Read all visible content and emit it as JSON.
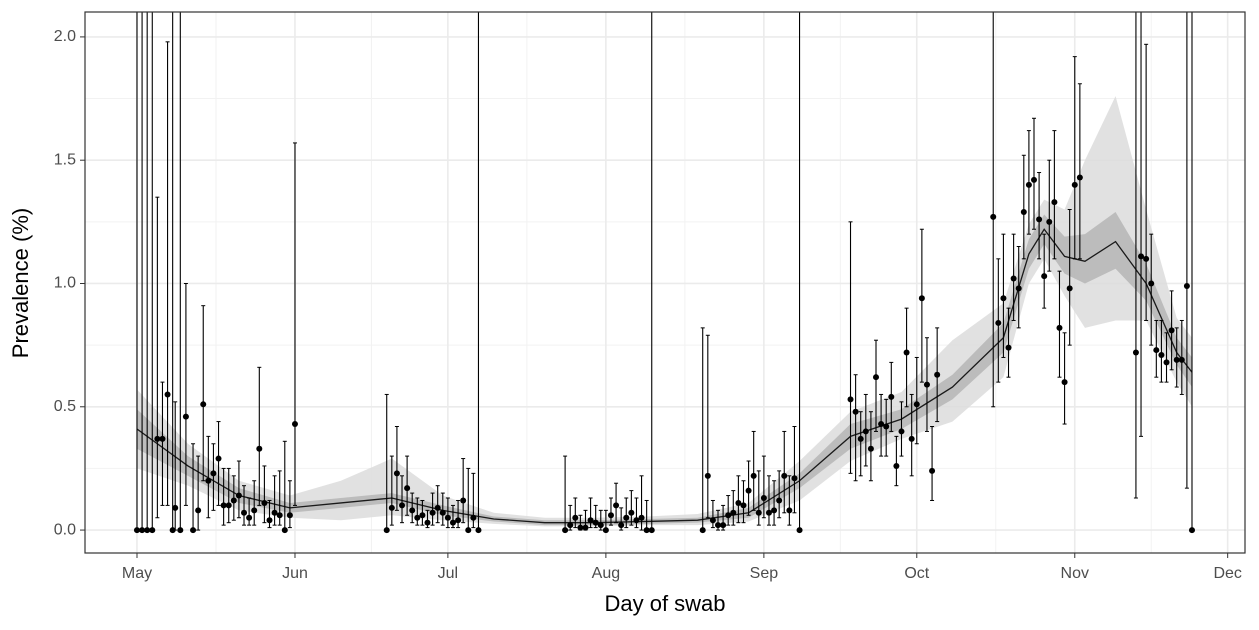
{
  "chart_data": {
    "type": "scatter",
    "x_label": "Day of swab",
    "y_label": "Prevalence (%)",
    "xlim": [
      -10.2,
      217.4
    ],
    "ylim": [
      -0.093,
      2.101
    ],
    "xticks": [
      {
        "value": 0,
        "label": "May"
      },
      {
        "value": 31,
        "label": "Jun"
      },
      {
        "value": 61,
        "label": "Jul"
      },
      {
        "value": 92,
        "label": "Aug"
      },
      {
        "value": 123,
        "label": "Sep"
      },
      {
        "value": 153,
        "label": "Oct"
      },
      {
        "value": 184,
        "label": "Nov"
      },
      {
        "value": 214,
        "label": "Dec"
      }
    ],
    "yticks": [
      {
        "value": 0,
        "label": "0.0"
      },
      0.5,
      {
        "value": 1,
        "label": "1.0"
      },
      1.5,
      {
        "value": 2,
        "label": "2.0"
      }
    ],
    "grid": true,
    "color": "#000000",
    "x": [
      0,
      1,
      2,
      3,
      4,
      5,
      6,
      7,
      7.5,
      8.5,
      9.6,
      11,
      12,
      13,
      14,
      15,
      16,
      17,
      18,
      19,
      20,
      21,
      22,
      23,
      24,
      25,
      26,
      27,
      28,
      29,
      30,
      31,
      49,
      50,
      51,
      52,
      53,
      54,
      55,
      56,
      57,
      58,
      59,
      60,
      61,
      62,
      63,
      64,
      65,
      66,
      67,
      84,
      85,
      86,
      87,
      88,
      89,
      90,
      91,
      92,
      93,
      94,
      95,
      96,
      97,
      98,
      99,
      100,
      101,
      111,
      112,
      113,
      114,
      115,
      116,
      117,
      118,
      119,
      120,
      121,
      122,
      123,
      124,
      125,
      126,
      127,
      128,
      129,
      130,
      140,
      141,
      142,
      143,
      144,
      145,
      146,
      147,
      148,
      149,
      150,
      151,
      152,
      153,
      154,
      155,
      156,
      157,
      168,
      169,
      170,
      171,
      172,
      173,
      174,
      175,
      176,
      177,
      178,
      179,
      180,
      181,
      182,
      183,
      184,
      185,
      196,
      197,
      198,
      199,
      200,
      201,
      202,
      203,
      204,
      205,
      206,
      207
    ],
    "values": [
      0,
      0,
      0,
      0,
      0.37,
      0.37,
      0.55,
      0,
      0.09,
      0,
      0.46,
      0,
      0.08,
      0.51,
      0.2,
      0.23,
      0.29,
      0.1,
      0.1,
      0.12,
      0.14,
      0.07,
      0.05,
      0.08,
      0.33,
      0.11,
      0.04,
      0.07,
      0.06,
      0,
      0.06,
      0.43,
      0,
      0.09,
      0.23,
      0.1,
      0.17,
      0.08,
      0.05,
      0.06,
      0.03,
      0.07,
      0.09,
      0.07,
      0.05,
      0.03,
      0.04,
      0.12,
      0,
      0.05,
      0,
      0,
      0.02,
      0.05,
      0.01,
      0.01,
      0.04,
      0.03,
      0.02,
      0,
      0.06,
      0.1,
      0.02,
      0.05,
      0.07,
      0.04,
      0.05,
      0,
      0,
      0,
      0.22,
      0.04,
      0.02,
      0.02,
      0.06,
      0.07,
      0.11,
      0.1,
      0.16,
      0.22,
      0.07,
      0.13,
      0.07,
      0.08,
      0.12,
      0.22,
      0.08,
      0.21,
      0,
      0.53,
      0.48,
      0.37,
      0.4,
      0.33,
      0.62,
      0.43,
      0.42,
      0.54,
      0.26,
      0.4,
      0.72,
      0.37,
      0.51,
      0.94,
      0.59,
      0.24,
      0.63,
      1.27,
      0.84,
      0.94,
      0.74,
      1.02,
      0.98,
      1.29,
      1.4,
      1.42,
      1.26,
      1.03,
      1.25,
      1.33,
      0.82,
      0.6,
      0.98,
      1.4,
      1.43,
      0.72,
      1.11,
      1.1,
      1.0,
      0.73,
      0.71,
      0.68,
      0.81,
      0.69,
      0.69,
      0.99,
      0
    ],
    "lower": [
      0,
      0,
      0,
      0,
      0.05,
      0.1,
      0.1,
      0,
      0,
      0,
      0.1,
      0,
      0,
      0.2,
      0.05,
      0.08,
      0.1,
      0.02,
      0.03,
      0.04,
      0.05,
      0.02,
      0.02,
      0.02,
      0.1,
      0.03,
      0.01,
      0.02,
      0.02,
      0,
      0.01,
      0.1,
      0,
      0.02,
      0.08,
      0.03,
      0.06,
      0.03,
      0.02,
      0.02,
      0.01,
      0.02,
      0.03,
      0.02,
      0.01,
      0.01,
      0.01,
      0.03,
      0,
      0.01,
      0,
      0,
      0,
      0.01,
      0,
      0,
      0.01,
      0.01,
      0,
      0,
      0.02,
      0.03,
      0,
      0.01,
      0.02,
      0.01,
      0,
      0,
      0,
      0,
      0.05,
      0.01,
      0,
      0,
      0.02,
      0.02,
      0.03,
      0.03,
      0.06,
      0.08,
      0.02,
      0.05,
      0.02,
      0.02,
      0.05,
      0.07,
      0.02,
      0.07,
      0,
      0.23,
      0.2,
      0.22,
      0.26,
      0.2,
      0.4,
      0.3,
      0.3,
      0.4,
      0.18,
      0.3,
      0.5,
      0.22,
      0.35,
      0.6,
      0.4,
      0.12,
      0.44,
      0.5,
      0.6,
      0.7,
      0.62,
      0.85,
      0.82,
      1.1,
      1.2,
      1.22,
      1.1,
      0.9,
      1.05,
      1.1,
      0.62,
      0.43,
      0.75,
      1.1,
      1.1,
      0.13,
      0.38,
      0.85,
      0.75,
      0.62,
      0.6,
      0.6,
      0.65,
      0.58,
      0.55,
      0.17,
      0
    ],
    "upper": [
      3,
      3,
      3,
      3,
      1.35,
      0.6,
      1.98,
      3,
      0.52,
      3,
      1.0,
      0.35,
      0.3,
      0.91,
      0.38,
      0.35,
      0.44,
      0.25,
      0.25,
      0.22,
      0.28,
      0.18,
      0.13,
      0.2,
      0.66,
      0.26,
      0.12,
      0.22,
      0.24,
      0.36,
      0.2,
      1.57,
      0.55,
      0.3,
      0.42,
      0.22,
      0.3,
      0.15,
      0.13,
      0.12,
      0.08,
      0.15,
      0.18,
      0.15,
      0.13,
      0.1,
      0.12,
      0.29,
      0.25,
      0.23,
      3,
      0.3,
      0.1,
      0.13,
      0.06,
      0.08,
      0.13,
      0.1,
      0.08,
      0.08,
      0.13,
      0.19,
      0.09,
      0.13,
      0.16,
      0.13,
      0.22,
      0.12,
      3,
      0.82,
      0.79,
      0.12,
      0.08,
      0.1,
      0.14,
      0.16,
      0.22,
      0.2,
      0.28,
      0.4,
      0.24,
      0.3,
      0.22,
      0.2,
      0.24,
      0.4,
      0.22,
      0.42,
      3,
      1.25,
      0.63,
      0.48,
      0.55,
      0.48,
      0.77,
      0.55,
      0.53,
      0.68,
      0.38,
      0.52,
      0.9,
      0.55,
      0.7,
      1.22,
      0.78,
      0.42,
      0.82,
      3,
      1.1,
      1.2,
      0.9,
      1.2,
      1.15,
      1.52,
      1.62,
      1.67,
      1.45,
      1.2,
      1.5,
      1.62,
      1.05,
      0.8,
      1.3,
      1.92,
      1.81,
      3,
      3,
      1.97,
      1.2,
      0.85,
      0.85,
      0.8,
      0.97,
      0.82,
      0.85,
      3,
      3
    ],
    "fit": {
      "color": "#1a1a1a",
      "x": [
        0,
        10,
        20,
        30,
        40,
        50,
        60,
        70,
        80,
        90,
        100,
        110,
        120,
        130,
        140,
        150,
        160,
        170,
        175,
        178,
        182,
        186,
        192,
        198,
        204,
        207
      ],
      "values": [
        0.41,
        0.26,
        0.14,
        0.09,
        0.11,
        0.13,
        0.08,
        0.045,
        0.03,
        0.03,
        0.035,
        0.04,
        0.07,
        0.2,
        0.38,
        0.45,
        0.58,
        0.78,
        1.12,
        1.22,
        1.11,
        1.09,
        1.17,
        1.0,
        0.72,
        0.64
      ]
    },
    "bands": [
      {
        "color": "#dcdcdc",
        "lower": [
          0.25,
          0.18,
          0.08,
          0.05,
          0.04,
          0.06,
          0.04,
          0.025,
          0.015,
          0.015,
          0.02,
          0.02,
          0.035,
          0.12,
          0.28,
          0.37,
          0.44,
          0.62,
          1.0,
          1.1,
          0.95,
          0.82,
          0.85,
          0.85,
          0.6,
          0.5
        ],
        "upper": [
          0.57,
          0.35,
          0.2,
          0.14,
          0.2,
          0.29,
          0.14,
          0.07,
          0.05,
          0.05,
          0.055,
          0.065,
          0.11,
          0.28,
          0.48,
          0.56,
          0.77,
          0.92,
          1.24,
          1.34,
          1.3,
          1.5,
          1.76,
          1.3,
          0.86,
          0.78
        ]
      },
      {
        "color": "#b5b5b5",
        "lower": [
          0.33,
          0.22,
          0.11,
          0.07,
          0.09,
          0.11,
          0.06,
          0.035,
          0.02,
          0.02,
          0.025,
          0.03,
          0.05,
          0.17,
          0.33,
          0.41,
          0.53,
          0.72,
          1.06,
          1.16,
          1.04,
          1.0,
          1.06,
          0.93,
          0.67,
          0.58
        ],
        "upper": [
          0.49,
          0.3,
          0.17,
          0.11,
          0.13,
          0.15,
          0.1,
          0.055,
          0.04,
          0.04,
          0.045,
          0.05,
          0.09,
          0.23,
          0.43,
          0.49,
          0.63,
          0.84,
          1.18,
          1.28,
          1.19,
          1.2,
          1.29,
          1.08,
          0.78,
          0.7
        ]
      }
    ]
  }
}
